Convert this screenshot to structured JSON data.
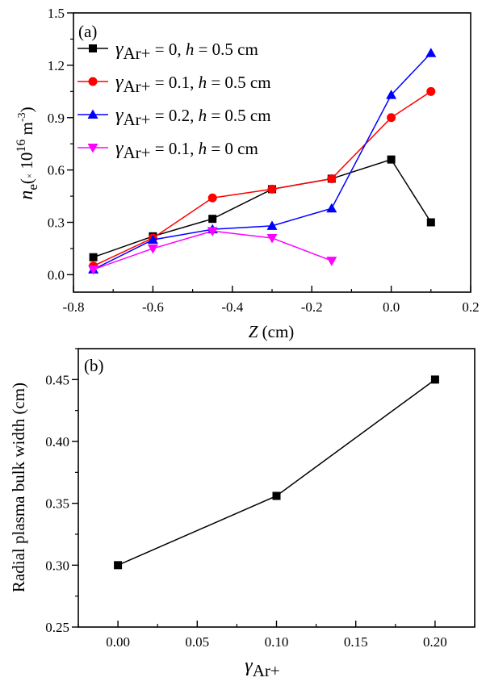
{
  "chart_data": [
    {
      "type": "line",
      "panel_label": "(a)",
      "title": "",
      "xlabel": "Z (cm)",
      "xlabel_parts": {
        "var": "Z",
        "unit": " (cm)"
      },
      "ylabel": "n_e (× 10^16 m^-3)",
      "ylabel_parts": {
        "var": "n",
        "sub": "e",
        "pre": "(",
        "times": "×",
        "base": " 10",
        "exp": "16",
        "unit": " m",
        "unit_exp": "-3",
        "post": ")"
      },
      "xlim": [
        -0.8,
        0.2
      ],
      "ylim": [
        -0.1,
        1.5
      ],
      "xticks": [
        -0.8,
        -0.6,
        -0.4,
        -0.2,
        0.0,
        0.2
      ],
      "xtick_labels": [
        "-0.8",
        "-0.6",
        "-0.4",
        "-0.2",
        "0.0",
        "0.2"
      ],
      "xminor": [
        -0.7,
        -0.5,
        -0.3,
        -0.1,
        0.1
      ],
      "yticks": [
        0.0,
        0.3,
        0.6,
        0.9,
        1.2,
        1.5
      ],
      "ytick_labels": [
        "0.0",
        "0.3",
        "0.6",
        "0.9",
        "1.2",
        "1.5"
      ],
      "yminor": [
        0.15,
        0.45,
        0.75,
        1.05,
        1.35
      ],
      "grid": false,
      "legend_position": "top-left",
      "series": [
        {
          "name": "γAr+ = 0, h = 0.5 cm",
          "legend": {
            "gamma": "γ",
            "sub": "Ar+",
            "eq": " = 0, ",
            "h": "h",
            "rest": " = 0.5 cm"
          },
          "color": "#000000",
          "marker": "square",
          "x": [
            -0.75,
            -0.6,
            -0.45,
            -0.3,
            -0.15,
            0.0,
            0.1
          ],
          "y": [
            0.1,
            0.22,
            0.32,
            0.49,
            0.55,
            0.66,
            0.3
          ]
        },
        {
          "name": "γAr+ = 0.1, h = 0.5 cm",
          "legend": {
            "gamma": "γ",
            "sub": "Ar+",
            "eq": " = 0.1, ",
            "h": "h",
            "rest": " = 0.5 cm"
          },
          "color": "#ff0000",
          "marker": "circle",
          "x": [
            -0.75,
            -0.6,
            -0.45,
            -0.3,
            -0.15,
            0.0,
            0.1
          ],
          "y": [
            0.05,
            0.21,
            0.44,
            0.49,
            0.55,
            0.9,
            1.05
          ]
        },
        {
          "name": "γAr+ = 0.2, h = 0.5 cm",
          "legend": {
            "gamma": "γ",
            "sub": "Ar+",
            "eq": " = 0.2, ",
            "h": "h",
            "rest": " = 0.5 cm"
          },
          "color": "#0000ff",
          "marker": "triangle-up",
          "x": [
            -0.75,
            -0.6,
            -0.45,
            -0.3,
            -0.15,
            0.0,
            0.1
          ],
          "y": [
            0.03,
            0.2,
            0.26,
            0.28,
            0.38,
            1.03,
            1.27
          ]
        },
        {
          "name": "γAr+ = 0.1, h = 0 cm",
          "legend": {
            "gamma": "γ",
            "sub": "Ar+",
            "eq": " = 0.1, ",
            "h": "h",
            "rest": " = 0 cm"
          },
          "color": "#ff00ff",
          "marker": "triangle-down",
          "x": [
            -0.75,
            -0.6,
            -0.45,
            -0.3,
            -0.15
          ],
          "y": [
            0.03,
            0.15,
            0.25,
            0.21,
            0.08
          ]
        }
      ]
    },
    {
      "type": "line",
      "panel_label": "(b)",
      "title": "",
      "xlabel": "γAr+",
      "xlabel_parts": {
        "var": "γ",
        "sub": "Ar+"
      },
      "ylabel": "Radial plasma bulk width (cm)",
      "xlim": [
        -0.025,
        0.225
      ],
      "ylim": [
        0.25,
        0.475
      ],
      "xticks": [
        0.0,
        0.05,
        0.1,
        0.15,
        0.2
      ],
      "xtick_labels": [
        "0.00",
        "0.05",
        "0.10",
        "0.15",
        "0.20"
      ],
      "xminor": [
        -0.025,
        0.025,
        0.075,
        0.125,
        0.175,
        0.225
      ],
      "yticks": [
        0.25,
        0.3,
        0.35,
        0.4,
        0.45
      ],
      "ytick_labels": [
        "0.25",
        "0.30",
        "0.35",
        "0.40",
        "0.45"
      ],
      "yminor": [
        0.275,
        0.325,
        0.375,
        0.425,
        0.475
      ],
      "grid": false,
      "legend_position": "none",
      "series": [
        {
          "name": "Radial plasma bulk width",
          "color": "#000000",
          "marker": "square",
          "x": [
            0.0,
            0.1,
            0.2
          ],
          "y": [
            0.3,
            0.356,
            0.45
          ]
        }
      ]
    }
  ]
}
